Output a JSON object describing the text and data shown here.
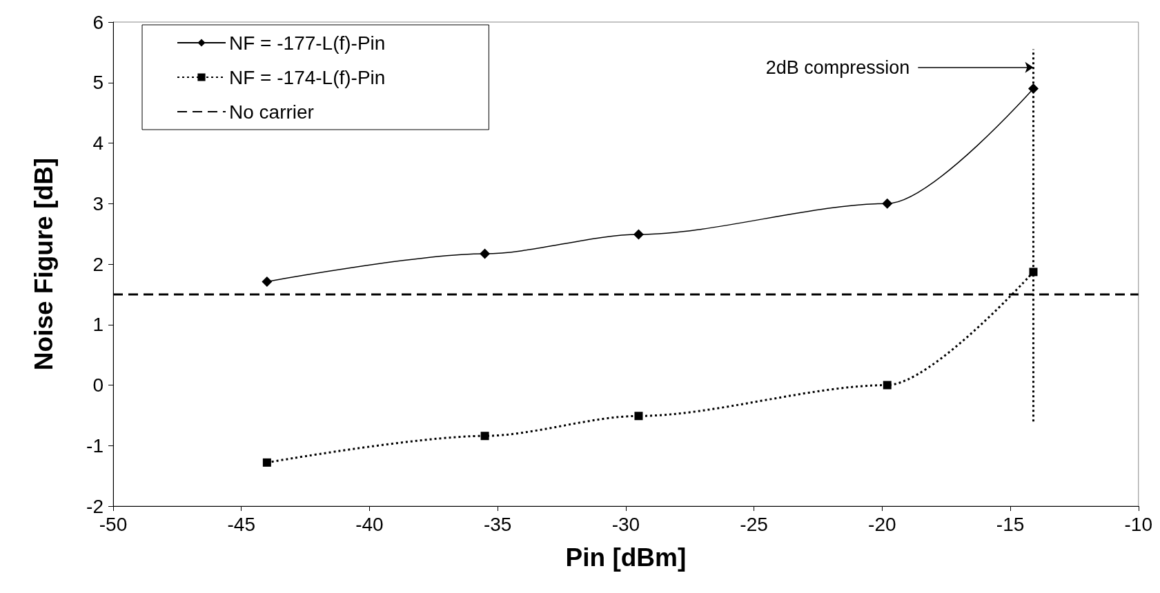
{
  "chart_data": {
    "type": "line",
    "xlabel": "Pin [dBm]",
    "ylabel": "Noise Figure [dB]",
    "xlim": [
      -50,
      -10
    ],
    "xticks": [
      -50,
      -45,
      -40,
      -35,
      -30,
      -25,
      -20,
      -15,
      -10
    ],
    "ylim": [
      -2,
      6
    ],
    "yticks": [
      -2,
      -1,
      0,
      1,
      2,
      3,
      4,
      5,
      6
    ],
    "grid": false,
    "legend": "top left",
    "series": [
      {
        "name": "NF = -177-L(f)-Pin",
        "color": "#000000",
        "marker": "diamond",
        "line_style": "solid",
        "x": [
          -44,
          -35.5,
          -29.5,
          -19.8,
          -14.1
        ],
        "values": [
          1.71,
          2.17,
          2.49,
          3.0,
          4.9
        ]
      },
      {
        "name": "NF = -174-L(f)-Pin",
        "color": "#000000",
        "marker": "square",
        "line_style": "dotted",
        "x": [
          -44,
          -35.5,
          -29.5,
          -19.8,
          -14.1
        ],
        "values": [
          -1.28,
          -0.84,
          -0.51,
          0.0,
          1.87
        ]
      },
      {
        "name": "No carrier",
        "color": "#000000",
        "marker": "none",
        "line_style": "dashed",
        "x": [
          -50,
          -10
        ],
        "values": [
          1.5,
          1.5
        ]
      },
      {
        "color": "#000000",
        "marker": "none",
        "line_style": "dotted",
        "x": [
          -14.1,
          -14.1
        ],
        "values": [
          -0.6,
          5.55
        ]
      }
    ],
    "annotations": [
      {
        "text": "2dB compression",
        "x": -14.1,
        "y": 5.25
      }
    ]
  }
}
